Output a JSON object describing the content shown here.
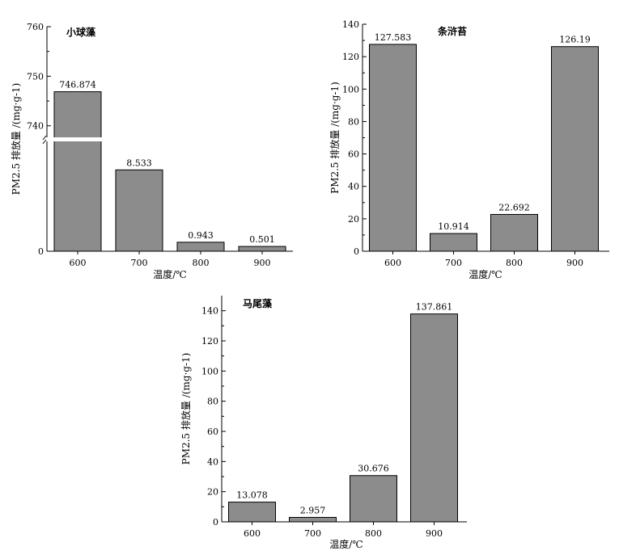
{
  "chart_data": [
    {
      "type": "bar",
      "title": "小球藻",
      "xlabel": "温度/℃",
      "ylabel": "PM2.5 排放量 /(mg·g-1)",
      "categories": [
        "600",
        "700",
        "800",
        "900"
      ],
      "values": [
        746.874,
        8.533,
        0.943,
        0.501
      ],
      "value_labels": [
        "746.874",
        "8.533",
        "0.943",
        "0.501"
      ],
      "y_axis_break": true,
      "ylim_lower": [
        0,
        10
      ],
      "ylim_upper": [
        738,
        760
      ],
      "yticks_lower": [
        "0"
      ],
      "yticks_upper": [
        "740",
        "750",
        "760"
      ],
      "grid": false,
      "bar_color": "#8c8c8c"
    },
    {
      "type": "bar",
      "title": "条浒苔",
      "xlabel": "温度/℃",
      "ylabel": "PM2.5 排放量 /(mg·g-1)",
      "categories": [
        "600",
        "700",
        "800",
        "900"
      ],
      "values": [
        127.583,
        10.914,
        22.692,
        126.19
      ],
      "value_labels": [
        "127.583",
        "10.914",
        "22.692",
        "126.19"
      ],
      "ylim": [
        0,
        140
      ],
      "yticks": [
        "0",
        "20",
        "40",
        "60",
        "80",
        "100",
        "120",
        "140"
      ],
      "grid": false,
      "bar_color": "#8c8c8c"
    },
    {
      "type": "bar",
      "title": "马尾藻",
      "xlabel": "温度/℃",
      "ylabel": "PM2.5 排放量 /(mg·g-1)",
      "categories": [
        "600",
        "700",
        "800",
        "900"
      ],
      "values": [
        13.078,
        2.957,
        30.676,
        137.861
      ],
      "value_labels": [
        "13.078",
        "2.957",
        "30.676",
        "137.861"
      ],
      "ylim": [
        0,
        150
      ],
      "yticks": [
        "0",
        "20",
        "40",
        "60",
        "80",
        "100",
        "120",
        "140"
      ],
      "grid": false,
      "bar_color": "#8c8c8c"
    }
  ]
}
